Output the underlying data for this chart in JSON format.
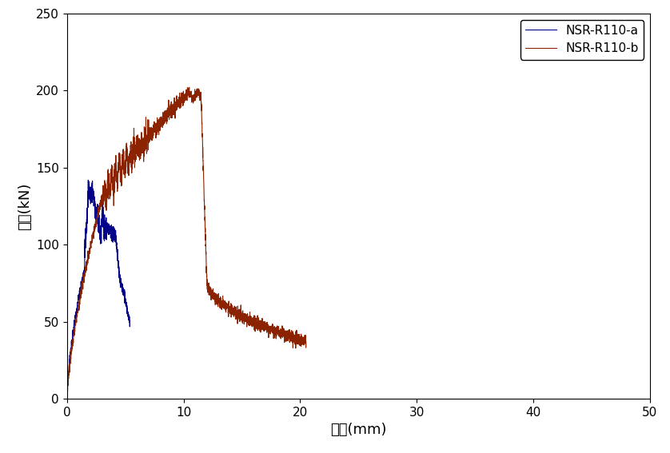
{
  "title": "",
  "xlabel": "변위(mm)",
  "ylabel": "하중(kN)",
  "xlim": [
    0,
    50
  ],
  "ylim": [
    0,
    250
  ],
  "xticks": [
    0,
    10,
    20,
    30,
    40,
    50
  ],
  "yticks": [
    0,
    50,
    100,
    150,
    200,
    250
  ],
  "color_a": "#00008B",
  "color_b": "#8B2200",
  "label_a": "NSR-R110-a",
  "label_b": "NSR-R110-b",
  "legend_fontsize": 11,
  "axis_fontsize": 13,
  "tick_fontsize": 11,
  "linewidth": 0.8,
  "figsize": [
    8.38,
    5.67
  ],
  "dpi": 100
}
